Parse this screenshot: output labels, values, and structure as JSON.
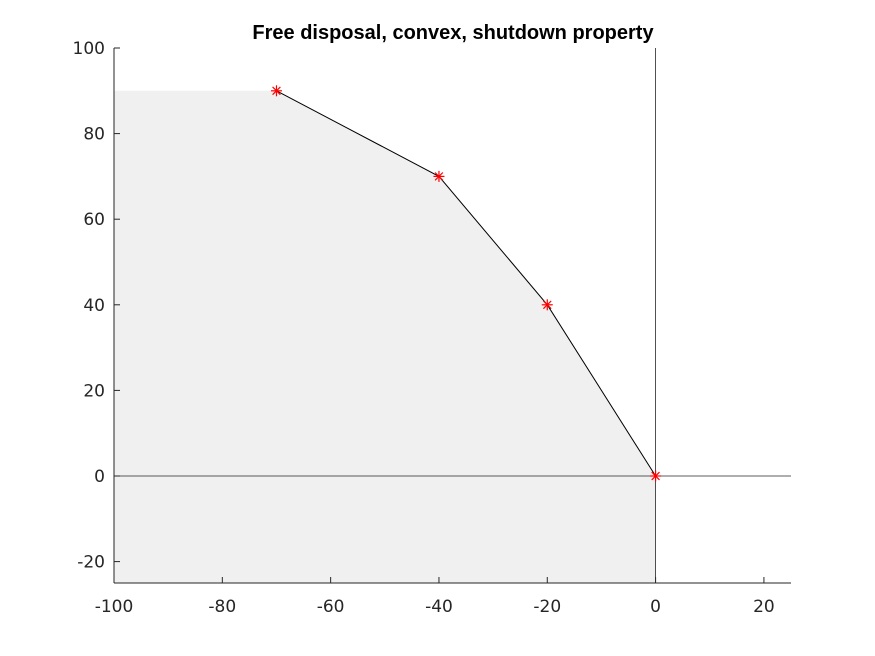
{
  "chart_data": {
    "type": "area",
    "title": "Free disposal, convex, shutdown property",
    "xlabel": "",
    "ylabel": "",
    "xlim": [
      -100,
      25
    ],
    "ylim": [
      -25,
      100
    ],
    "xticks": [
      -100,
      -80,
      -60,
      -40,
      -20,
      0,
      20
    ],
    "yticks": [
      -20,
      0,
      20,
      40,
      60,
      80,
      100
    ],
    "x_tick_labels": [
      "-100",
      "-80",
      "-60",
      "-40",
      "-20",
      "0",
      "20"
    ],
    "y_tick_labels": [
      "-20",
      "0",
      "20",
      "40",
      "60",
      "80",
      "100"
    ],
    "grid": false,
    "box": false,
    "series": [
      {
        "x": [
          -70,
          -40,
          -20,
          0
        ],
        "y": [
          90,
          70,
          40,
          0
        ],
        "line_color": "#000000",
        "marker": "asterisk",
        "marker_color": "#ff0000"
      }
    ],
    "shaded_region": {
      "description_points_x": [
        -100,
        -70,
        -40,
        -20,
        0,
        0,
        -100
      ],
      "description_points_y": [
        90,
        90,
        70,
        40,
        0,
        -25,
        -25
      ],
      "color": "#f0f0f0"
    },
    "reference_lines": {
      "x_axis_at": 0,
      "y_axis_at": 0,
      "color": "#262626"
    },
    "colors": {
      "axis": "#262626",
      "frontier": "#000000",
      "markers": "#ff0000",
      "fill": "#f0f0f0"
    }
  }
}
